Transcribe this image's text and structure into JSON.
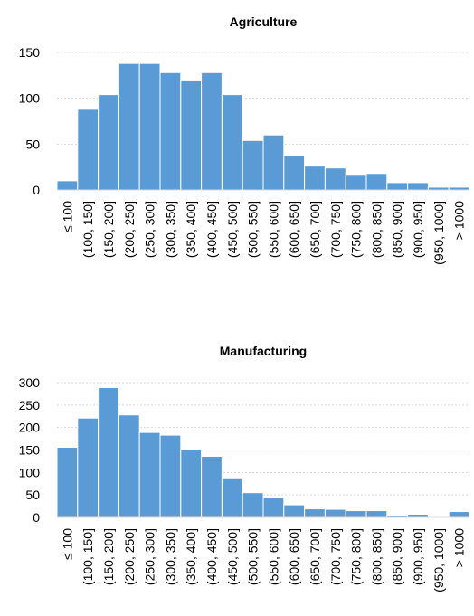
{
  "chart_data": [
    {
      "type": "bar",
      "title": "Agriculture",
      "categories": [
        "≤ 100",
        "(100, 150]",
        "(150, 200]",
        "(200, 250]",
        "(250, 300]",
        "(300, 350]",
        "(350, 400]",
        "(400, 450]",
        "(450, 500]",
        "(500, 550]",
        "(550, 600]",
        "(600, 650]",
        "(650, 700]",
        "(700, 750]",
        "(750, 800]",
        "(800, 850]",
        "(850, 900]",
        "(900, 950]",
        "(950, 1000]",
        "> 1000"
      ],
      "values": [
        10,
        88,
        104,
        138,
        138,
        128,
        120,
        128,
        104,
        54,
        60,
        38,
        26,
        24,
        16,
        18,
        8,
        8,
        3,
        3
      ],
      "ylim": [
        0,
        150
      ],
      "yticks": [
        0,
        50,
        100,
        150
      ],
      "xlabel": "",
      "ylabel": "",
      "grid": true,
      "bar_color": "#5b9bd5"
    },
    {
      "type": "bar",
      "title": "Manufacturing",
      "categories": [
        "≤ 100",
        "(100, 150]",
        "(150, 200]",
        "(200, 250]",
        "(250, 300]",
        "(300, 350]",
        "(350, 400]",
        "(400, 450]",
        "(450, 500]",
        "(500, 550]",
        "(550, 600]",
        "(600, 650]",
        "(650, 700]",
        "(700, 750]",
        "(750, 800]",
        "(800, 850]",
        "(850, 900]",
        "(900, 950]",
        "(950, 1000]",
        "> 1000"
      ],
      "values": [
        156,
        221,
        289,
        228,
        189,
        183,
        150,
        136,
        88,
        55,
        44,
        28,
        19,
        18,
        15,
        15,
        4,
        7,
        1,
        13
      ],
      "ylim": [
        0,
        300
      ],
      "yticks": [
        0,
        50,
        100,
        150,
        200,
        250,
        300
      ],
      "xlabel": "",
      "ylabel": "",
      "grid": true,
      "bar_color": "#5b9bd5"
    }
  ]
}
